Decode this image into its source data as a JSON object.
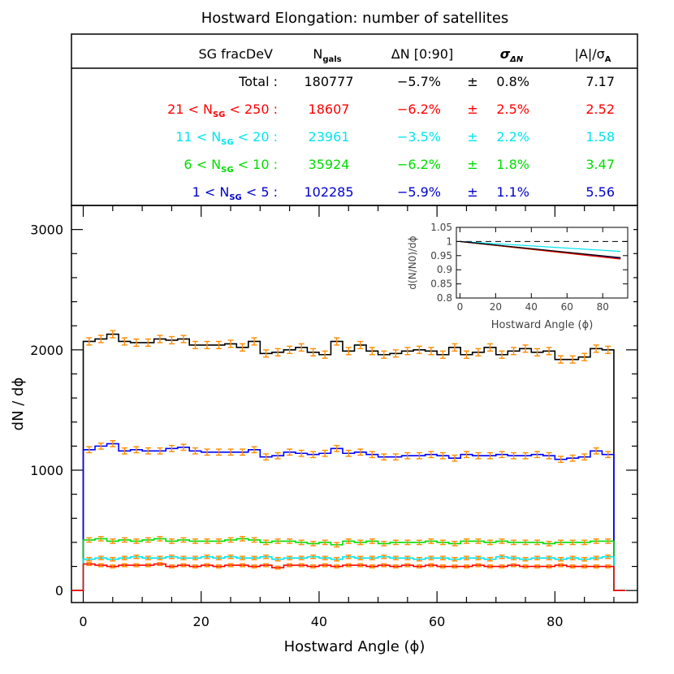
{
  "title": "Hostward Elongation: number of satellites",
  "table": {
    "headers": {
      "sample": "SG fracDeV",
      "ngals_main": "N",
      "ngals_sub": "gals",
      "dn": "ΔN [0:90]",
      "sigma_main": "σ",
      "sigma_sub": "ΔN",
      "ratio_main": "|A|/σ",
      "ratio_sub": "A"
    },
    "rows": [
      {
        "pre": "Total :",
        "sub": "",
        "post": "",
        "ngals": "180777",
        "dn": "−5.7%",
        "pm": "±",
        "sigma": "0.8%",
        "ratio": "7.17",
        "color": "#000000"
      },
      {
        "pre": "21 < N",
        "sub": "SG",
        "post": " < 250 :",
        "ngals": "18607",
        "dn": "−6.2%",
        "pm": "±",
        "sigma": "2.5%",
        "ratio": "2.52",
        "color": "#ff0000"
      },
      {
        "pre": "11 < N",
        "sub": "SG",
        "post": " < 20 :",
        "ngals": "23961",
        "dn": "−3.5%",
        "pm": "±",
        "sigma": "2.2%",
        "ratio": "1.58",
        "color": "#00e5ee"
      },
      {
        "pre": "6 < N",
        "sub": "SG",
        "post": " < 10 :",
        "ngals": "35924",
        "dn": "−6.2%",
        "pm": "±",
        "sigma": "1.8%",
        "ratio": "3.47",
        "color": "#00dd00"
      },
      {
        "pre": "1 < N",
        "sub": "SG",
        "post": " < 5 :",
        "ngals": "102285",
        "dn": "−5.9%",
        "pm": "±",
        "sigma": "1.1%",
        "ratio": "5.56",
        "color": "#0000cc"
      }
    ]
  },
  "chart_data": [
    {
      "type": "line",
      "xlabel": "Hostward Angle (ϕ)",
      "ylabel": "dN / dϕ",
      "xlim": [
        -2,
        94
      ],
      "ylim": [
        -100,
        3200
      ],
      "xticks": [
        "0",
        "20",
        "40",
        "60",
        "80"
      ],
      "xtick_values": [
        0,
        20,
        40,
        60,
        80
      ],
      "yticks": [
        "0",
        "1000",
        "2000",
        "3000"
      ],
      "ytick_values": [
        0,
        1000,
        2000,
        3000
      ],
      "bin_width": 2,
      "bin_centers": [
        1,
        3,
        5,
        7,
        9,
        11,
        13,
        15,
        17,
        19,
        21,
        23,
        25,
        27,
        29,
        31,
        33,
        35,
        37,
        39,
        41,
        43,
        45,
        47,
        49,
        51,
        53,
        55,
        57,
        59,
        61,
        63,
        65,
        67,
        69,
        71,
        73,
        75,
        77,
        79,
        81,
        83,
        85,
        87,
        89
      ],
      "error_color": "#ff8c00",
      "series": [
        {
          "color": "#000000",
          "error": 30,
          "values": [
            2070,
            2090,
            2130,
            2070,
            2060,
            2060,
            2090,
            2080,
            2090,
            2040,
            2040,
            2040,
            2050,
            2020,
            2070,
            1970,
            1980,
            2000,
            2020,
            1980,
            1960,
            2070,
            1990,
            2040,
            1990,
            1960,
            1970,
            1990,
            2000,
            1990,
            1960,
            2020,
            1960,
            1980,
            2020,
            1960,
            1990,
            2010,
            1980,
            1990,
            1920,
            1920,
            1940,
            2010,
            2000
          ]
        },
        {
          "color": "#0000ff",
          "error": 25,
          "values": [
            1170,
            1200,
            1220,
            1160,
            1170,
            1160,
            1160,
            1180,
            1190,
            1160,
            1150,
            1150,
            1150,
            1150,
            1170,
            1110,
            1120,
            1150,
            1140,
            1130,
            1140,
            1180,
            1140,
            1150,
            1130,
            1110,
            1110,
            1120,
            1120,
            1130,
            1120,
            1100,
            1130,
            1120,
            1120,
            1130,
            1120,
            1120,
            1130,
            1120,
            1090,
            1100,
            1110,
            1160,
            1130
          ]
        },
        {
          "color": "#00dd00",
          "error": 18,
          "values": [
            420,
            430,
            410,
            420,
            410,
            420,
            430,
            410,
            420,
            410,
            410,
            410,
            420,
            430,
            420,
            400,
            410,
            410,
            400,
            390,
            400,
            380,
            410,
            400,
            410,
            390,
            400,
            400,
            400,
            410,
            400,
            390,
            410,
            410,
            400,
            410,
            400,
            400,
            400,
            390,
            400,
            400,
            400,
            410,
            410
          ]
        },
        {
          "color": "#00e5ee",
          "error": 14,
          "values": [
            260,
            270,
            260,
            270,
            280,
            270,
            270,
            280,
            270,
            270,
            280,
            270,
            280,
            270,
            270,
            280,
            260,
            270,
            270,
            280,
            270,
            260,
            280,
            270,
            270,
            280,
            270,
            270,
            260,
            270,
            270,
            260,
            270,
            270,
            260,
            280,
            270,
            260,
            270,
            270,
            260,
            270,
            260,
            270,
            280
          ]
        },
        {
          "color": "#ff0000",
          "error": 12,
          "values": [
            220,
            210,
            200,
            210,
            210,
            210,
            220,
            200,
            210,
            200,
            210,
            200,
            210,
            210,
            200,
            210,
            190,
            210,
            210,
            200,
            210,
            200,
            210,
            210,
            200,
            210,
            200,
            210,
            200,
            210,
            200,
            200,
            200,
            210,
            200,
            200,
            210,
            200,
            200,
            200,
            210,
            200,
            200,
            200,
            200
          ]
        }
      ]
    },
    {
      "type": "line",
      "xlabel": "Hostward Angle (ϕ)",
      "ylabel": "d(N/N0)/dϕ",
      "xlim": [
        -2,
        94
      ],
      "ylim": [
        0.8,
        1.05
      ],
      "xticks": [
        "0",
        "20",
        "40",
        "60",
        "80"
      ],
      "xtick_values": [
        0,
        20,
        40,
        60,
        80
      ],
      "yticks": [
        "0.8",
        "0.85",
        "0.9",
        "0.95",
        "1",
        "1.05"
      ],
      "ytick_values": [
        0.8,
        0.85,
        0.9,
        0.95,
        1.0,
        1.05
      ],
      "reference_line": 1.0,
      "series": [
        {
          "color": "#00e5ee",
          "x": [
            0,
            90
          ],
          "values": [
            1.0,
            0.965
          ]
        },
        {
          "color": "#00dd00",
          "x": [
            0,
            90
          ],
          "values": [
            1.0,
            0.938
          ]
        },
        {
          "color": "#0000ff",
          "x": [
            0,
            90
          ],
          "values": [
            1.0,
            0.941
          ]
        },
        {
          "color": "#ff0000",
          "x": [
            0,
            90
          ],
          "values": [
            1.0,
            0.938
          ]
        },
        {
          "color": "#000000",
          "x": [
            0,
            90
          ],
          "values": [
            1.0,
            0.943
          ]
        }
      ]
    }
  ]
}
